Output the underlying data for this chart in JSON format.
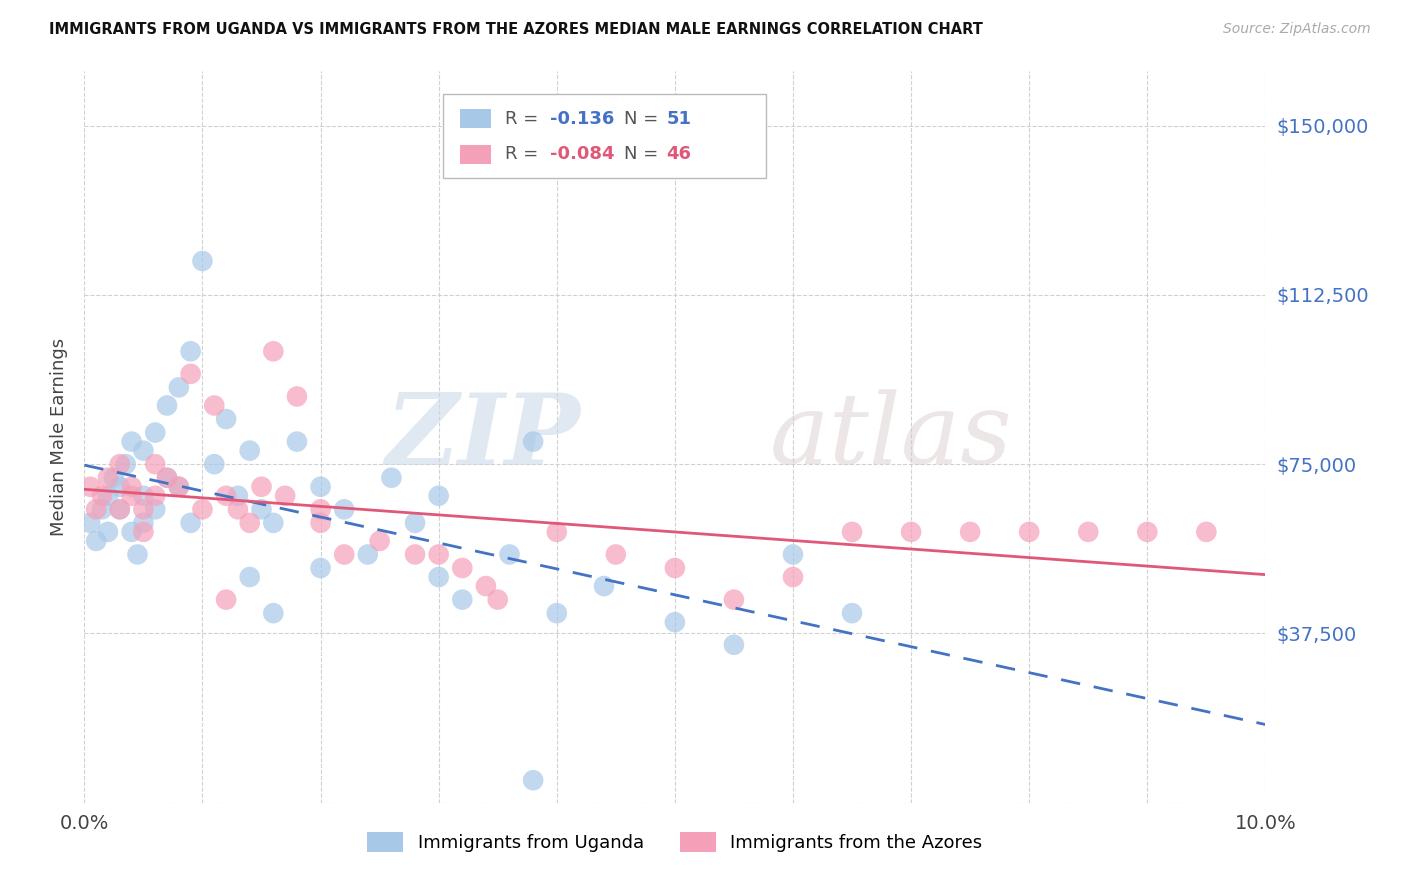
{
  "title": "IMMIGRANTS FROM UGANDA VS IMMIGRANTS FROM THE AZORES MEDIAN MALE EARNINGS CORRELATION CHART",
  "source": "Source: ZipAtlas.com",
  "ylabel": "Median Male Earnings",
  "ytick_vals": [
    0,
    37500,
    75000,
    112500,
    150000
  ],
  "ytick_labels": [
    "",
    "$37,500",
    "$75,000",
    "$112,500",
    "$150,000"
  ],
  "xlim": [
    0.0,
    0.1
  ],
  "ylim": [
    0,
    162000
  ],
  "color_uganda": "#a8c8e8",
  "color_azores": "#f4a0b8",
  "color_uganda_line": "#4472c4",
  "color_azores_line": "#e05878",
  "color_axis_text": "#4472c4",
  "background": "#ffffff",
  "watermark_zip": "ZIP",
  "watermark_atlas": "atlas",
  "uganda_x": [
    0.0005,
    0.001,
    0.0015,
    0.002,
    0.002,
    0.0025,
    0.003,
    0.003,
    0.0035,
    0.004,
    0.004,
    0.0045,
    0.005,
    0.005,
    0.005,
    0.006,
    0.006,
    0.007,
    0.007,
    0.008,
    0.008,
    0.009,
    0.009,
    0.01,
    0.011,
    0.012,
    0.013,
    0.014,
    0.015,
    0.016,
    0.018,
    0.02,
    0.022,
    0.024,
    0.026,
    0.028,
    0.03,
    0.032,
    0.036,
    0.038,
    0.04,
    0.044,
    0.05,
    0.055,
    0.06,
    0.065,
    0.03,
    0.016,
    0.014,
    0.02,
    0.038
  ],
  "uganda_y": [
    62000,
    58000,
    65000,
    60000,
    68000,
    72000,
    70000,
    65000,
    75000,
    80000,
    60000,
    55000,
    78000,
    68000,
    62000,
    82000,
    65000,
    88000,
    72000,
    92000,
    70000,
    100000,
    62000,
    120000,
    75000,
    85000,
    68000,
    78000,
    65000,
    62000,
    80000,
    70000,
    65000,
    55000,
    72000,
    62000,
    50000,
    45000,
    55000,
    80000,
    42000,
    48000,
    40000,
    35000,
    55000,
    42000,
    68000,
    42000,
    50000,
    52000,
    5000
  ],
  "azores_x": [
    0.0005,
    0.001,
    0.0015,
    0.002,
    0.003,
    0.003,
    0.004,
    0.004,
    0.005,
    0.005,
    0.006,
    0.006,
    0.007,
    0.008,
    0.009,
    0.01,
    0.011,
    0.012,
    0.013,
    0.014,
    0.015,
    0.016,
    0.017,
    0.018,
    0.02,
    0.022,
    0.025,
    0.028,
    0.03,
    0.032,
    0.034,
    0.04,
    0.045,
    0.05,
    0.055,
    0.065,
    0.07,
    0.075,
    0.08,
    0.085,
    0.09,
    0.095,
    0.012,
    0.02,
    0.035,
    0.06
  ],
  "azores_y": [
    70000,
    65000,
    68000,
    72000,
    75000,
    65000,
    68000,
    70000,
    60000,
    65000,
    75000,
    68000,
    72000,
    70000,
    95000,
    65000,
    88000,
    68000,
    65000,
    62000,
    70000,
    100000,
    68000,
    90000,
    62000,
    55000,
    58000,
    55000,
    55000,
    52000,
    48000,
    60000,
    55000,
    52000,
    45000,
    60000,
    60000,
    60000,
    60000,
    60000,
    60000,
    60000,
    45000,
    65000,
    45000,
    50000
  ]
}
